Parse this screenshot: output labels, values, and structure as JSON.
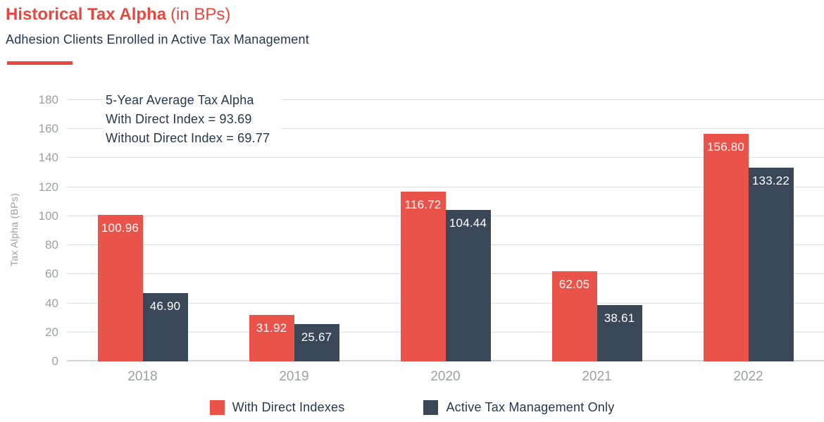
{
  "header": {
    "title": "Historical Tax Alpha",
    "title_suffix": "(in BPs)",
    "subtitle": "Adhesion Clients Enrolled in Active Tax Management"
  },
  "annotation": {
    "line1": "5-Year Average Tax Alpha",
    "line2": "With Direct Index = 93.69",
    "line3": "Without Direct Index = 69.77"
  },
  "chart_data": {
    "type": "bar",
    "title": "Historical Tax Alpha (in BPs)",
    "subtitle": "Adhesion Clients Enrolled in Active Tax Management",
    "categories": [
      "2018",
      "2019",
      "2020",
      "2021",
      "2022"
    ],
    "series": [
      {
        "name": "With Direct Indexes",
        "color": "#E9534A",
        "values": [
          100.96,
          31.92,
          116.72,
          62.05,
          156.8
        ]
      },
      {
        "name": "Active Tax Management Only",
        "color": "#3A4757",
        "values": [
          46.9,
          25.67,
          104.44,
          38.61,
          133.22
        ]
      }
    ],
    "xlabel": "",
    "ylabel": "Tax Alpha (BPs)",
    "ylim": [
      0,
      180
    ],
    "yticks": [
      0,
      20,
      40,
      60,
      80,
      100,
      120,
      140,
      160,
      180
    ],
    "grid": true,
    "legend_position": "bottom",
    "value_label_decimals": 2,
    "annotation_lines": [
      "5-Year Average Tax Alpha",
      "With Direct Index = 93.69",
      "Without Direct Index = 69.77"
    ]
  },
  "colors": {
    "title_red": "#E8473F",
    "bar_red": "#E9534A",
    "bar_dark": "#3A4757",
    "navy_text": "#243750",
    "axis_gray": "#9B9EA3",
    "gridline": "#DBDDDF",
    "value_label": "#ffffff"
  }
}
